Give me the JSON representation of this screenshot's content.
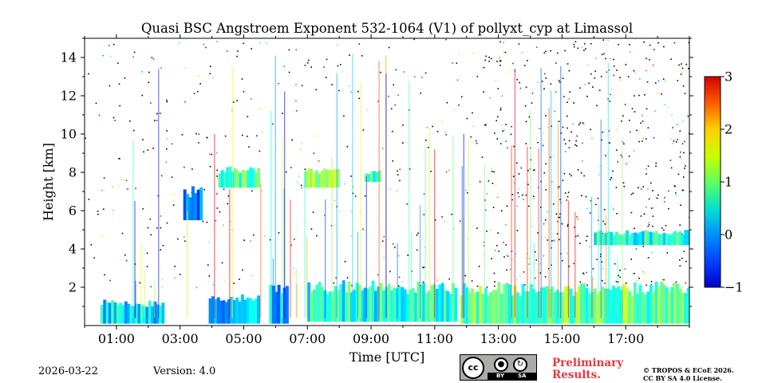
{
  "chart_data": {
    "type": "heatmap",
    "title": "Quasi BSC Angstroem Exponent 532-1064 (V1) of pollyxt_cyp at Limassol",
    "xlabel": "Time [UTC]",
    "ylabel": "Height [km]",
    "xlim_hours": [
      0.0,
      19.0
    ],
    "ylim_km": [
      0,
      15
    ],
    "x_ticks": [
      {
        "hour": 1,
        "label": "01:00"
      },
      {
        "hour": 3,
        "label": "03:00"
      },
      {
        "hour": 5,
        "label": "05:00"
      },
      {
        "hour": 7,
        "label": "07:00"
      },
      {
        "hour": 9,
        "label": "09:00"
      },
      {
        "hour": 11,
        "label": "11:00"
      },
      {
        "hour": 13,
        "label": "13:00"
      },
      {
        "hour": 15,
        "label": "15:00"
      },
      {
        "hour": 17,
        "label": "17:00"
      }
    ],
    "y_ticks": [
      {
        "km": 2,
        "label": "2"
      },
      {
        "km": 4,
        "label": "4"
      },
      {
        "km": 6,
        "label": "6"
      },
      {
        "km": 8,
        "label": "8"
      },
      {
        "km": 10,
        "label": "10"
      },
      {
        "km": 12,
        "label": "12"
      },
      {
        "km": 14,
        "label": "14"
      }
    ],
    "colorbar": {
      "min": -1,
      "max": 3,
      "colormap": "jet",
      "ticks": [
        {
          "value": -1,
          "label": "−1"
        },
        {
          "value": 0,
          "label": "0"
        },
        {
          "value": 1,
          "label": "1"
        },
        {
          "value": 2,
          "label": "2"
        },
        {
          "value": 3,
          "label": "3"
        }
      ]
    },
    "layers": [
      {
        "name": "boundary-layer-early",
        "t_start": 0.5,
        "t_end": 2.5,
        "h_bottom": 0.1,
        "h_top": 1.4,
        "value": 0.4
      },
      {
        "name": "boundary-layer-night",
        "t_start": 3.9,
        "t_end": 5.5,
        "h_bottom": 0.1,
        "h_top": 1.8,
        "value": 0.3
      },
      {
        "name": "boundary-layer-dawn",
        "t_start": 5.8,
        "t_end": 6.4,
        "h_bottom": 0.1,
        "h_top": 2.2,
        "value": 0.2
      },
      {
        "name": "boundary-layer-day",
        "t_start": 7.0,
        "t_end": 11.7,
        "h_bottom": 0.2,
        "h_top": 2.4,
        "value": 0.6
      },
      {
        "name": "boundary-layer-afternoon",
        "t_start": 11.8,
        "t_end": 19.0,
        "h_bottom": 0.1,
        "h_top": 2.3,
        "value": 0.9
      },
      {
        "name": "elevated-layer-1",
        "t_start": 4.2,
        "t_end": 5.5,
        "h_bottom": 7.2,
        "h_top": 8.3,
        "value": 0.8
      },
      {
        "name": "elevated-layer-2",
        "t_start": 6.9,
        "t_end": 8.0,
        "h_bottom": 7.2,
        "h_top": 8.2,
        "value": 1.0
      },
      {
        "name": "elevated-layer-3",
        "t_start": 8.8,
        "t_end": 9.3,
        "h_bottom": 7.5,
        "h_top": 8.1,
        "value": 0.7
      },
      {
        "name": "elevated-layer-4",
        "t_start": 3.1,
        "t_end": 3.7,
        "h_bottom": 5.5,
        "h_top": 7.3,
        "value": 0.1
      },
      {
        "name": "residual-layer-late",
        "t_start": 16.0,
        "t_end": 19.0,
        "h_bottom": 4.2,
        "h_top": 5.0,
        "value": 0.6
      }
    ]
  },
  "footer": {
    "date": "2026-03-22",
    "version": "Version: 4.0",
    "preliminary_line1": "Preliminary",
    "preliminary_line2": "Results.",
    "license_line1": "© TROPOS & ECoE 2026.",
    "license_line2": "CC BY SA 4.0 License.",
    "cc_logo_text": "cc",
    "cc_by": "BY",
    "cc_sa": "SA"
  }
}
